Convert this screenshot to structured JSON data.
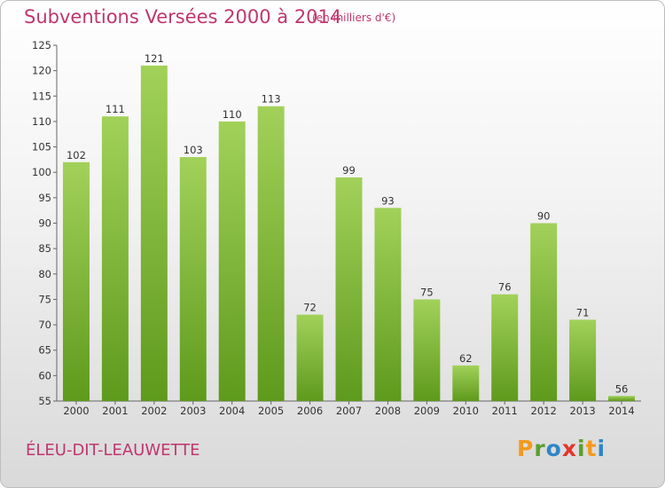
{
  "header": {
    "title": "Subventions Versées 2000 à 2014",
    "subtitle": "(en milliers d'€)"
  },
  "footer": {
    "commune": "ÉLEU-DIT-LEAUWETTE",
    "brand": "Proxiti",
    "brand_colors": [
      "#f39a1e",
      "#5aa02c",
      "#2f86c7",
      "#e2352b",
      "#5aa02c",
      "#f39a1e",
      "#2f86c7"
    ]
  },
  "colors": {
    "text_accent": "#c0366e",
    "bar_top": "#a2d15a",
    "bar_bottom": "#5e9a1c"
  },
  "chart_data": {
    "type": "bar",
    "categories": [
      "2000",
      "2001",
      "2002",
      "2003",
      "2004",
      "2005",
      "2006",
      "2007",
      "2008",
      "2009",
      "2010",
      "2011",
      "2012",
      "2013",
      "2014"
    ],
    "values": [
      102,
      111,
      121,
      103,
      110,
      113,
      72,
      99,
      93,
      75,
      62,
      76,
      90,
      71,
      56
    ],
    "title": "Subventions Versées 2000 à 2014",
    "subtitle": "(en milliers d'€)",
    "xlabel": "",
    "ylabel": "",
    "ylim": [
      55,
      125
    ],
    "yticks": [
      55,
      60,
      65,
      70,
      75,
      80,
      85,
      90,
      95,
      100,
      105,
      110,
      115,
      120,
      125
    ],
    "grid": false,
    "legend": "none"
  }
}
